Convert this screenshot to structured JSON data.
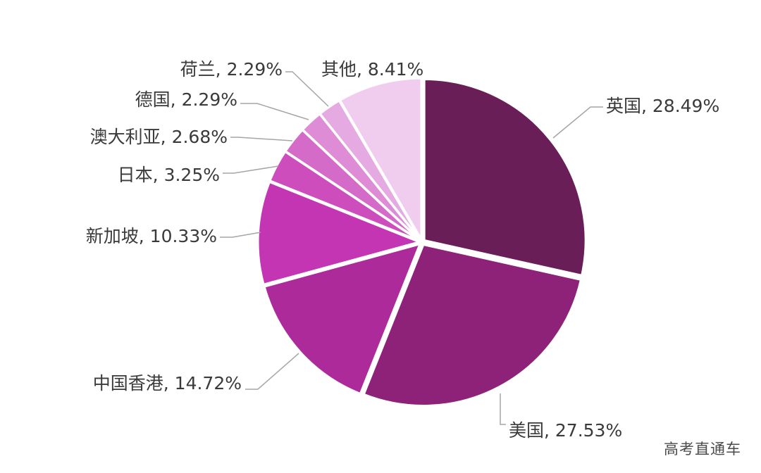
{
  "chart_data": {
    "type": "pie",
    "start_angle_deg": 0,
    "direction": "clockwise",
    "slices": [
      {
        "label": "英国",
        "value": 28.49,
        "text": "英国, 28.49%",
        "color": "#6a1e57"
      },
      {
        "label": "美国",
        "value": 27.53,
        "text": "美国, 27.53%",
        "color": "#8d2278"
      },
      {
        "label": "中国香港",
        "value": 14.72,
        "text": "中国香港, 14.72%",
        "color": "#ad2a9b"
      },
      {
        "label": "新加坡",
        "value": 10.33,
        "text": "新加坡, 10.33%",
        "color": "#c435b4"
      },
      {
        "label": "日本",
        "value": 3.25,
        "text": "日本, 3.25%",
        "color": "#cd4dbd"
      },
      {
        "label": "澳大利亚",
        "value": 2.68,
        "text": "澳大利亚, 2.68%",
        "color": "#d56bc8"
      },
      {
        "label": "德国",
        "value": 2.29,
        "text": "德国, 2.29%",
        "color": "#dd8cd5"
      },
      {
        "label": "荷兰",
        "value": 2.29,
        "text": "荷兰, 2.29%",
        "color": "#e5aae1"
      },
      {
        "label": "其他",
        "value": 8.41,
        "text": "其他, 8.41%",
        "color": "#f0cdee"
      }
    ],
    "legend": "none"
  },
  "watermark": "高考直通车"
}
